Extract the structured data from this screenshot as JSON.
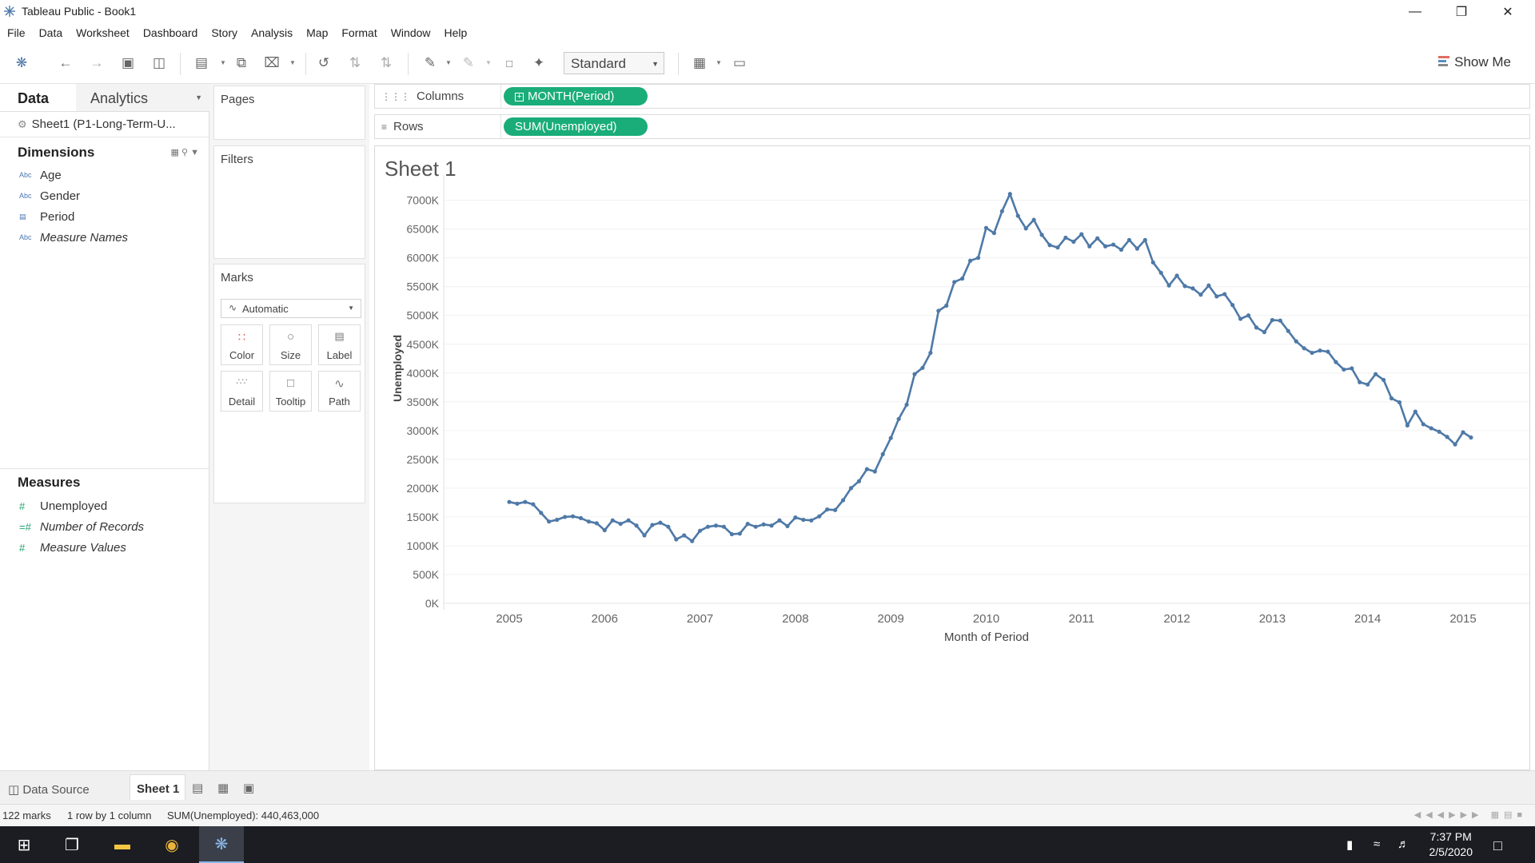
{
  "window": {
    "title": "Tableau Public - Book1"
  },
  "menu": [
    "File",
    "Data",
    "Worksheet",
    "Dashboard",
    "Story",
    "Analysis",
    "Map",
    "Format",
    "Window",
    "Help"
  ],
  "toolbar": {
    "fit_select": "Standard",
    "show_me": "Show Me"
  },
  "data_pane": {
    "tab_data": "Data",
    "tab_analytics": "Analytics",
    "data_source": "Sheet1 (P1-Long-Term-U...",
    "dimensions_title": "Dimensions",
    "dimensions": [
      {
        "type": "Abc",
        "name": "Age",
        "italic": false
      },
      {
        "type": "Abc",
        "name": "Gender",
        "italic": false
      },
      {
        "type": "date",
        "name": "Period",
        "italic": false
      },
      {
        "type": "Abc",
        "name": "Measure Names",
        "italic": true
      }
    ],
    "measures_title": "Measures",
    "measures": [
      {
        "type": "#",
        "name": "Unemployed",
        "italic": false
      },
      {
        "type": "=#",
        "name": "Number of Records",
        "italic": true
      },
      {
        "type": "#",
        "name": "Measure Values",
        "italic": true
      }
    ]
  },
  "cards": {
    "pages": "Pages",
    "filters": "Filters",
    "marks": "Marks",
    "mark_type": "Automatic",
    "buttons": [
      "Color",
      "Size",
      "Label",
      "Detail",
      "Tooltip",
      "Path"
    ]
  },
  "shelves": {
    "columns_label": "Columns",
    "columns_pill": "MONTH(Period)",
    "rows_label": "Rows",
    "rows_pill": "SUM(Unemployed)"
  },
  "sheet_title": "Sheet 1",
  "chart_data": {
    "type": "line",
    "xlabel": "Month of Period",
    "ylabel": "Unemployed",
    "x_ticks": [
      "2005",
      "2006",
      "2007",
      "2008",
      "2009",
      "2010",
      "2011",
      "2012",
      "2013",
      "2014",
      "2015"
    ],
    "y_ticks": [
      "0K",
      "500K",
      "1000K",
      "1500K",
      "2000K",
      "2500K",
      "3000K",
      "3500K",
      "4000K",
      "4500K",
      "5000K",
      "5500K",
      "6000K",
      "6500K",
      "7000K"
    ],
    "ylim": [
      0,
      7300000
    ],
    "x_start": "2005-01",
    "x_end": "2015-02",
    "line_color": "#4e79a7",
    "grid": true,
    "values": [
      1760000,
      1730000,
      1760000,
      1720000,
      1570000,
      1420000,
      1450000,
      1500000,
      1510000,
      1480000,
      1420000,
      1390000,
      1270000,
      1440000,
      1380000,
      1440000,
      1350000,
      1180000,
      1360000,
      1400000,
      1330000,
      1110000,
      1180000,
      1080000,
      1260000,
      1330000,
      1350000,
      1330000,
      1200000,
      1210000,
      1380000,
      1330000,
      1370000,
      1350000,
      1440000,
      1340000,
      1490000,
      1450000,
      1440000,
      1510000,
      1630000,
      1620000,
      1790000,
      2000000,
      2120000,
      2330000,
      2290000,
      2590000,
      2870000,
      3200000,
      3450000,
      3980000,
      4090000,
      4350000,
      5080000,
      5170000,
      5580000,
      5640000,
      5950000,
      6000000,
      6520000,
      6430000,
      6810000,
      7110000,
      6730000,
      6510000,
      6660000,
      6400000,
      6220000,
      6180000,
      6350000,
      6280000,
      6410000,
      6200000,
      6340000,
      6200000,
      6230000,
      6140000,
      6310000,
      6160000,
      6310000,
      5920000,
      5740000,
      5520000,
      5690000,
      5510000,
      5470000,
      5360000,
      5520000,
      5330000,
      5370000,
      5180000,
      4940000,
      5000000,
      4790000,
      4710000,
      4920000,
      4910000,
      4730000,
      4550000,
      4430000,
      4350000,
      4390000,
      4370000,
      4190000,
      4060000,
      4080000,
      3840000,
      3800000,
      3980000,
      3880000,
      3560000,
      3490000,
      3090000,
      3330000,
      3110000,
      3040000,
      2980000,
      2890000,
      2760000,
      2970000,
      2880000
    ]
  },
  "bottom_tabs": {
    "data_source": "Data Source",
    "sheet": "Sheet 1"
  },
  "status": {
    "marks": "122 marks",
    "rows_cols": "1 row by 1 column",
    "sum": "SUM(Unemployed): 440,463,000"
  },
  "taskbar": {
    "time": "7:37 PM",
    "date": "2/5/2020"
  }
}
